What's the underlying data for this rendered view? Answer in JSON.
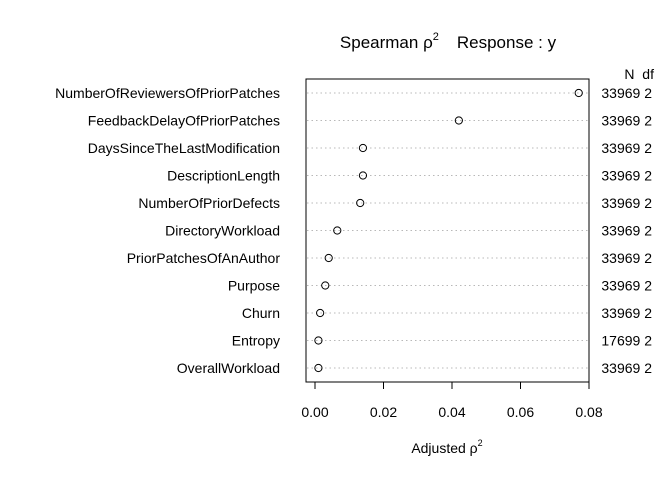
{
  "chart_data": {
    "type": "scatter",
    "title_main": "Spearman ρ",
    "title_sup": "2",
    "title_response": "Response : y",
    "xlabel_main": "Adjusted ρ",
    "xlabel_sup": "2",
    "xlim": [
      0,
      0.08
    ],
    "xticks": [
      0.0,
      0.02,
      0.04,
      0.06,
      0.08
    ],
    "xtick_labels": [
      "0.00",
      "0.02",
      "0.04",
      "0.06",
      "0.08"
    ],
    "right_header": "N  df",
    "grid": "dotted horizontal",
    "point_style": "open circle",
    "rows": [
      {
        "name": "NumberOfReviewersOfPriorPatches",
        "value": 0.077,
        "N": 33969,
        "df": 2
      },
      {
        "name": "FeedbackDelayOfPriorPatches",
        "value": 0.042,
        "N": 33969,
        "df": 2
      },
      {
        "name": "DaysSinceTheLastModification",
        "value": 0.014,
        "N": 33969,
        "df": 2
      },
      {
        "name": "DescriptionLength",
        "value": 0.014,
        "N": 33969,
        "df": 2
      },
      {
        "name": "NumberOfPriorDefects",
        "value": 0.0132,
        "N": 33969,
        "df": 2
      },
      {
        "name": "DirectoryWorkload",
        "value": 0.0065,
        "N": 33969,
        "df": 2
      },
      {
        "name": "PriorPatchesOfAnAuthor",
        "value": 0.004,
        "N": 33969,
        "df": 2
      },
      {
        "name": "Purpose",
        "value": 0.003,
        "N": 33969,
        "df": 2
      },
      {
        "name": "Churn",
        "value": 0.0015,
        "N": 33969,
        "df": 2
      },
      {
        "name": "Entropy",
        "value": 0.001,
        "N": 17699,
        "df": 2
      },
      {
        "name": "OverallWorkload",
        "value": 0.001,
        "N": 33969,
        "df": 2
      }
    ]
  }
}
